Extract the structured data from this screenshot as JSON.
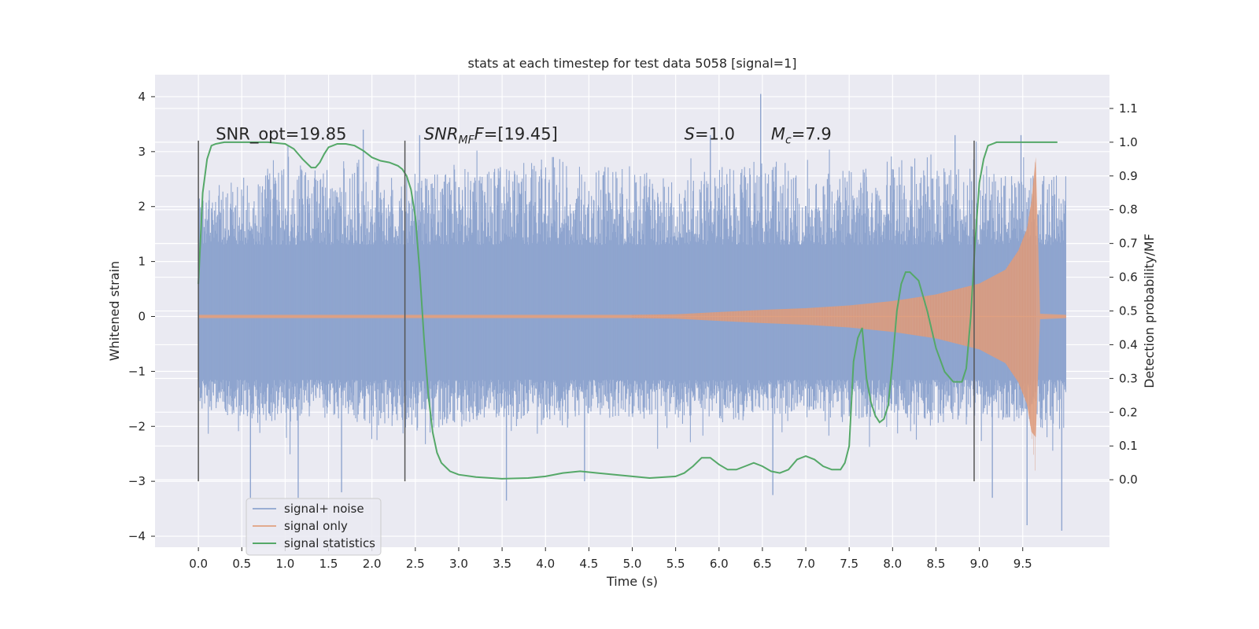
{
  "chart_data": {
    "type": "line",
    "title": "stats at each timestep for test data 5058 [signal=1]",
    "xlabel": "Time (s)",
    "ylabel": "Whitened strain",
    "y2label": "Detection probability/MF",
    "xlim": [
      -0.5,
      10.5
    ],
    "ylim": [
      -4.2,
      4.4
    ],
    "y2lim": [
      -0.2,
      1.2
    ],
    "xticks": [
      0.0,
      0.5,
      1.0,
      1.5,
      2.0,
      2.5,
      3.0,
      3.5,
      4.0,
      4.5,
      5.0,
      5.5,
      6.0,
      6.5,
      7.0,
      7.5,
      8.0,
      8.5,
      9.0,
      9.5
    ],
    "xtick_labels": [
      "0.0",
      "0.5",
      "1.0",
      "1.5",
      "2.0",
      "2.5",
      "3.0",
      "3.5",
      "4.0",
      "4.5",
      "5.0",
      "5.5",
      "6.0",
      "6.5",
      "7.0",
      "7.5",
      "8.0",
      "8.5",
      "9.0",
      "9.5"
    ],
    "yticks": [
      -4,
      -3,
      -2,
      -1,
      0,
      1,
      2,
      3,
      4
    ],
    "ytick_labels": [
      "−4",
      "−3",
      "−2",
      "−1",
      "0",
      "1",
      "2",
      "3",
      "4"
    ],
    "y2ticks": [
      0.0,
      0.1,
      0.2,
      0.3,
      0.4,
      0.5,
      0.6,
      0.7,
      0.8,
      0.9,
      1.0,
      1.1
    ],
    "y2tick_labels": [
      "0.0",
      "0.1",
      "0.2",
      "0.3",
      "0.4",
      "0.5",
      "0.6",
      "0.7",
      "0.8",
      "0.9",
      "1.0",
      "1.1"
    ],
    "grid": true,
    "legend_position": "lower-left",
    "colors": {
      "background": "#eaeaf2",
      "grid": "#ffffff",
      "noise": "#8fa5cf",
      "signal": "#e0a080",
      "stat": "#55a868",
      "vline": "#555555"
    },
    "annotations": {
      "snr_opt": "SNR_opt=19.85",
      "snr_mf_sym": "SNR",
      "snr_mf_sub": "MF",
      "snr_mf_value": "=[19.45]",
      "s_sym": "S",
      "s_value": "=1.0",
      "mc_sym": "M",
      "mc_sub": "c",
      "mc_value": "=7.9"
    },
    "vlines": [
      0.0,
      2.38,
      8.94
    ],
    "vline_range": [
      -3.0,
      3.2
    ],
    "series": [
      {
        "name": "signal+ noise",
        "kind": "noise",
        "x_range": [
          0.0,
          10.0
        ],
        "band_upper": [
          2.1,
          2.3,
          2.5,
          2.4,
          2.6,
          2.3,
          2.5,
          2.4,
          2.6,
          2.5,
          2.4,
          2.3,
          2.4,
          2.5,
          2.3,
          2.4,
          2.6,
          2.4,
          2.5,
          2.3,
          2.4
        ],
        "band_lower": [
          -1.6,
          -1.7,
          -1.8,
          -1.7,
          -1.8,
          -1.9,
          -1.8,
          -1.7,
          -1.8,
          -1.7,
          -1.8,
          -1.7,
          -1.8,
          -1.7,
          -1.6,
          -1.8,
          -1.7,
          -1.8,
          -1.7,
          -1.8,
          -1.8
        ],
        "peaks": [
          [
            0.6,
            -3.3
          ],
          [
            1.15,
            -3.3
          ],
          [
            1.65,
            -3.2
          ],
          [
            2.55,
            3.3
          ],
          [
            3.55,
            -3.35
          ],
          [
            4.45,
            -3.0
          ],
          [
            5.9,
            3.3
          ],
          [
            6.48,
            4.05
          ],
          [
            6.62,
            -3.25
          ],
          [
            9.15,
            -3.3
          ],
          [
            9.55,
            -3.8
          ],
          [
            9.95,
            -3.9
          ],
          [
            9.48,
            3.3
          ],
          [
            8.72,
            3.3
          ],
          [
            1.9,
            3.4
          ]
        ]
      },
      {
        "name": "signal only",
        "kind": "chirp",
        "x": [
          0.0,
          5.0,
          5.5,
          6.0,
          6.5,
          7.0,
          7.5,
          8.0,
          8.5,
          9.0,
          9.3,
          9.45,
          9.55,
          9.6,
          9.65,
          9.7,
          10.0
        ],
        "upper": [
          0.03,
          0.03,
          0.04,
          0.08,
          0.12,
          0.15,
          0.2,
          0.28,
          0.4,
          0.6,
          0.85,
          1.2,
          1.6,
          2.1,
          2.9,
          0.05,
          0.03
        ],
        "lower": [
          -0.03,
          -0.03,
          -0.04,
          -0.08,
          -0.12,
          -0.15,
          -0.2,
          -0.28,
          -0.4,
          -0.6,
          -0.85,
          -1.2,
          -1.6,
          -2.1,
          -2.2,
          -0.05,
          -0.03
        ]
      },
      {
        "name": "signal statistics",
        "kind": "line",
        "axis": "right",
        "x": [
          0.0,
          0.05,
          0.1,
          0.15,
          0.2,
          0.3,
          0.5,
          0.8,
          1.0,
          1.1,
          1.2,
          1.3,
          1.35,
          1.4,
          1.45,
          1.5,
          1.6,
          1.7,
          1.8,
          1.9,
          2.0,
          2.1,
          2.2,
          2.3,
          2.35,
          2.4,
          2.45,
          2.5,
          2.55,
          2.6,
          2.65,
          2.7,
          2.75,
          2.8,
          2.9,
          3.0,
          3.2,
          3.5,
          3.8,
          4.0,
          4.2,
          4.4,
          4.6,
          4.8,
          5.0,
          5.2,
          5.5,
          5.6,
          5.7,
          5.8,
          5.9,
          6.0,
          6.1,
          6.2,
          6.3,
          6.4,
          6.5,
          6.6,
          6.7,
          6.8,
          6.9,
          7.0,
          7.1,
          7.2,
          7.3,
          7.4,
          7.45,
          7.5,
          7.55,
          7.6,
          7.65,
          7.7,
          7.75,
          7.8,
          7.85,
          7.9,
          7.95,
          8.0,
          8.05,
          8.1,
          8.15,
          8.2,
          8.3,
          8.4,
          8.5,
          8.6,
          8.7,
          8.8,
          8.85,
          8.9,
          8.95,
          9.0,
          9.05,
          9.1,
          9.2,
          9.3,
          9.5,
          9.7,
          9.9
        ],
        "y": [
          0.58,
          0.85,
          0.95,
          0.99,
          0.995,
          1.0,
          1.0,
          1.0,
          0.995,
          0.98,
          0.95,
          0.925,
          0.925,
          0.94,
          0.965,
          0.985,
          0.995,
          0.995,
          0.99,
          0.975,
          0.955,
          0.945,
          0.94,
          0.93,
          0.92,
          0.9,
          0.86,
          0.78,
          0.62,
          0.42,
          0.25,
          0.14,
          0.08,
          0.05,
          0.025,
          0.015,
          0.008,
          0.003,
          0.005,
          0.01,
          0.02,
          0.025,
          0.02,
          0.015,
          0.01,
          0.005,
          0.01,
          0.02,
          0.04,
          0.065,
          0.065,
          0.045,
          0.03,
          0.03,
          0.04,
          0.05,
          0.04,
          0.025,
          0.02,
          0.03,
          0.06,
          0.07,
          0.06,
          0.04,
          0.03,
          0.03,
          0.05,
          0.1,
          0.35,
          0.42,
          0.45,
          0.3,
          0.23,
          0.19,
          0.17,
          0.18,
          0.22,
          0.35,
          0.5,
          0.58,
          0.615,
          0.615,
          0.59,
          0.5,
          0.39,
          0.32,
          0.29,
          0.29,
          0.33,
          0.48,
          0.7,
          0.88,
          0.95,
          0.99,
          1.0,
          1.0,
          1.0,
          1.0,
          1.0
        ]
      }
    ]
  }
}
